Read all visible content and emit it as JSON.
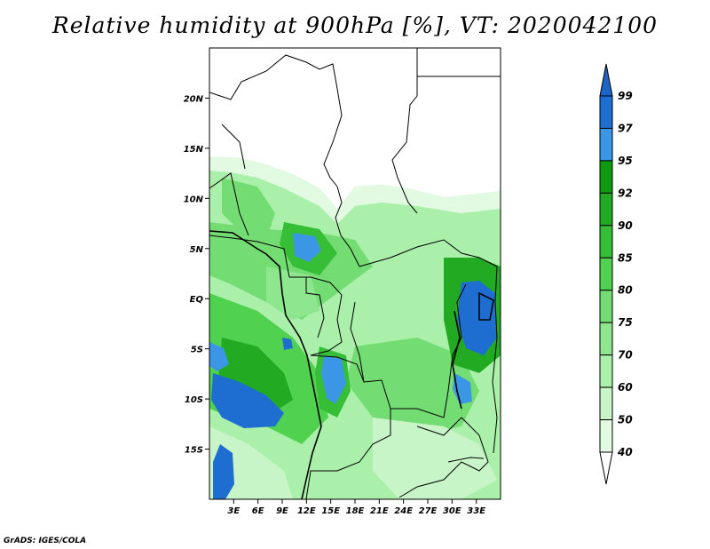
{
  "title": "Relative humidity at 900hPa [%], VT: 2020042100",
  "credit": "GrADS: IGES/COLA",
  "map": {
    "lon_range": [
      0,
      36
    ],
    "lat_range": [
      -20,
      25
    ],
    "lat_ticks": [
      {
        "value": 20,
        "label": "20N"
      },
      {
        "value": 15,
        "label": "15N"
      },
      {
        "value": 10,
        "label": "10N"
      },
      {
        "value": 5,
        "label": "5N"
      },
      {
        "value": 0,
        "label": "EQ"
      },
      {
        "value": -5,
        "label": "5S"
      },
      {
        "value": -10,
        "label": "10S"
      },
      {
        "value": -15,
        "label": "15S"
      }
    ],
    "lon_ticks": [
      {
        "value": 3,
        "label": "3E"
      },
      {
        "value": 6,
        "label": "6E"
      },
      {
        "value": 9,
        "label": "9E"
      },
      {
        "value": 12,
        "label": "12E"
      },
      {
        "value": 15,
        "label": "15E"
      },
      {
        "value": 18,
        "label": "18E"
      },
      {
        "value": 21,
        "label": "21E"
      },
      {
        "value": 24,
        "label": "24E"
      },
      {
        "value": 27,
        "label": "27E"
      },
      {
        "value": 30,
        "label": "30E"
      },
      {
        "value": 33,
        "label": "33E"
      }
    ]
  },
  "colorbar": {
    "levels": [
      {
        "label": "99",
        "color": "#1e6ed2"
      },
      {
        "label": "97",
        "color": "#1e6ed2"
      },
      {
        "label": "95",
        "color": "#3c96e6"
      },
      {
        "label": "92",
        "color": "#0f9b0f"
      },
      {
        "label": "90",
        "color": "#23aa23"
      },
      {
        "label": "85",
        "color": "#37be37"
      },
      {
        "label": "80",
        "color": "#50d250"
      },
      {
        "label": "75",
        "color": "#73dc73"
      },
      {
        "label": "70",
        "color": "#8ee68e"
      },
      {
        "label": "60",
        "color": "#aaf0aa"
      },
      {
        "label": "50",
        "color": "#c8f5c8"
      },
      {
        "label": "40",
        "color": "#e1fae1"
      }
    ],
    "top_color": "#1e64c8",
    "bottom_color": "#ffffff"
  }
}
